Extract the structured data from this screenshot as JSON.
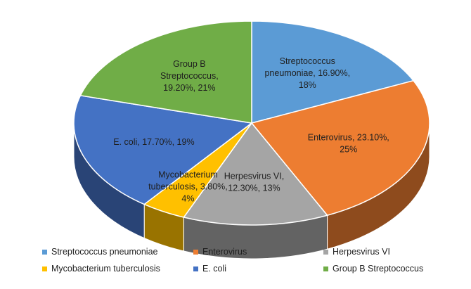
{
  "chart_data": {
    "type": "pie",
    "title": "",
    "style": "3d-exploded-none",
    "legend_position": "bottom",
    "slices": [
      {
        "name": "Streptococcus pneumoniae",
        "label": "Streptococcus pneumoniae, 16.90%, 18%",
        "value": 16.9,
        "percent": 18,
        "color": "#5B9BD5"
      },
      {
        "name": "Enterovirus",
        "label": "Enterovirus, 23.10%, 25%",
        "value": 23.1,
        "percent": 25,
        "color": "#ED7D31"
      },
      {
        "name": "Herpesvirus VI",
        "label": "Herpesvirus VI, 12.30%, 13%",
        "value": 12.3,
        "percent": 13,
        "color": "#A5A5A5"
      },
      {
        "name": "Mycobacterium tuberculosis",
        "label": "Mycobacterium tuberculosis, 3.80%, 4%",
        "value": 3.8,
        "percent": 4,
        "color": "#FFC000"
      },
      {
        "name": "E. coli",
        "label": "E. coli, 17.70%, 19%",
        "value": 17.7,
        "percent": 19,
        "color": "#4472C4"
      },
      {
        "name": "Group B Streptococcus",
        "label": "Group B Streptococcus, 19.20%, 21%",
        "value": 19.2,
        "percent": 21,
        "color": "#70AD47"
      }
    ]
  }
}
